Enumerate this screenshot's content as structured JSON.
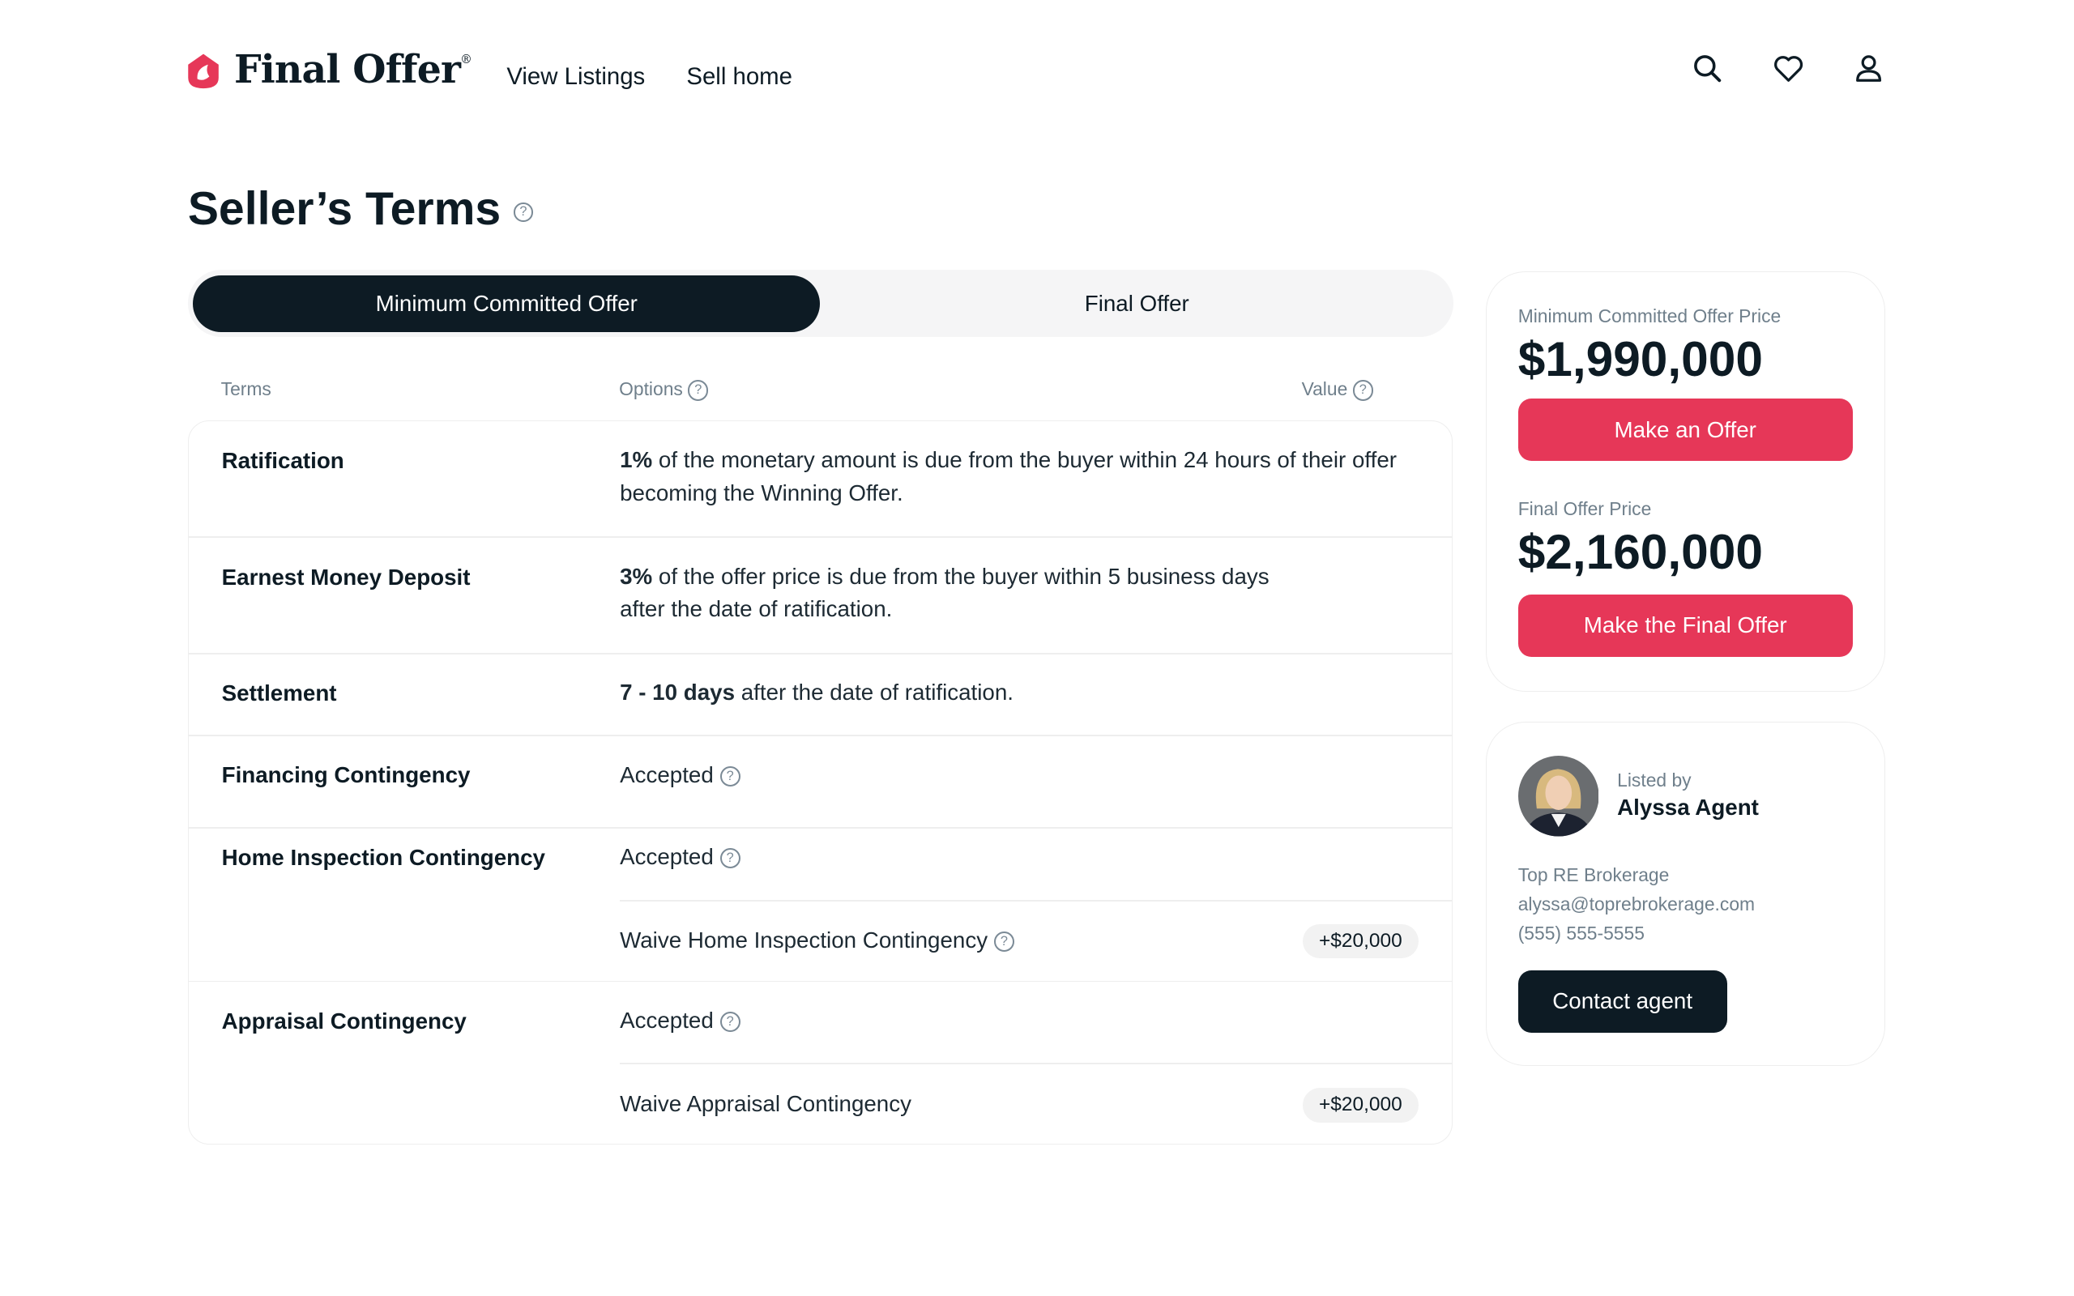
{
  "brand": {
    "name": "Final Offer",
    "mark": "®",
    "color": "#e63758"
  },
  "nav": {
    "items": [
      "View Listings",
      "Sell home"
    ],
    "icons": [
      "search-icon",
      "heart-icon",
      "user-icon"
    ]
  },
  "page": {
    "title": "Seller’s Terms"
  },
  "tabs": {
    "active": "Minimum Committed Offer",
    "inactive": "Final Offer"
  },
  "table": {
    "headers": {
      "terms": "Terms",
      "options": "Options",
      "value": "Value"
    },
    "rows": [
      {
        "term": "Ratification",
        "bold": "1%",
        "text": " of the monetary amount is due from the buyer within 24 hours of their offer becoming the Winning Offer."
      },
      {
        "term": "Earnest Money Deposit",
        "bold": "3%",
        "text": " of the offer price is due from the buyer within 5 business days",
        "text2": "after the date of ratification."
      },
      {
        "term": "Settlement",
        "bold": "7 - 10 days",
        "text": " after the date of ratification."
      },
      {
        "term": "Financing Contingency",
        "option": "Accepted"
      },
      {
        "term": "Home Inspection Contingency",
        "option": "Accepted",
        "sub": "Waive Home Inspection Contingency",
        "value": "+$20,000"
      },
      {
        "term": "Appraisal Contingency",
        "option": "Accepted",
        "sub": "Waive Appraisal Contingency",
        "value": "+$20,000"
      }
    ]
  },
  "pricing": {
    "min_label": "Minimum Committed Offer Price",
    "min_price": "$1,990,000",
    "min_button": "Make an Offer",
    "final_label": "Final Offer Price",
    "final_price": "$2,160,000",
    "final_button": "Make the Final Offer"
  },
  "agent": {
    "listed_by": "Listed by",
    "name": "Alyssa Agent",
    "brokerage": "Top RE Brokerage",
    "email": "alyssa@toprebrokerage.com",
    "phone": "(555) 555-5555",
    "button": "Contact agent"
  },
  "help_glyph": "?"
}
